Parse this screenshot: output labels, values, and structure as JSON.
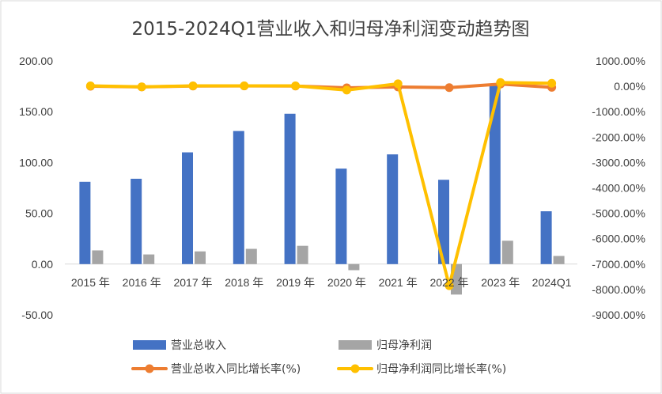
{
  "chart_data": {
    "type": "bar",
    "title": "2015-2024Q1营业收入和归母净利润变动趋势图",
    "categories": [
      "2015 年",
      "2016 年",
      "2017 年",
      "2018 年",
      "2019 年",
      "2020 年",
      "2021 年",
      "2022 年",
      "2023 年",
      "2024Q1"
    ],
    "y_left_ticks": [
      "200.00",
      "150.00",
      "100.00",
      "50.00",
      "0.00",
      "-50.00"
    ],
    "y_right_ticks": [
      "1000.00%",
      "0.00%",
      "-1000.00%",
      "-2000.00%",
      "-3000.00%",
      "-4000.00%",
      "-5000.00%",
      "-6000.00%",
      "-7000.00%",
      "-8000.00%",
      "-9000.00%"
    ],
    "ylim_left": [
      -50,
      200
    ],
    "ylim_right": [
      -9000,
      1000
    ],
    "grid": false,
    "legend_position": "bottom",
    "series": [
      {
        "name": "营业总收入",
        "type": "bar",
        "axis": "left",
        "color": "#4472C4",
        "values": [
          81,
          84,
          110,
          131,
          148,
          94,
          108,
          83,
          177,
          52
        ]
      },
      {
        "name": "归母净利润",
        "type": "bar",
        "axis": "left",
        "color": "#A5A5A5",
        "values": [
          13.5,
          9.5,
          12.5,
          15,
          18,
          -6,
          0,
          -30,
          23,
          8
        ]
      },
      {
        "name": "营业总收入同比增长率(%)",
        "type": "line",
        "axis": "right",
        "color": "#ED7D31",
        "values": [
          5,
          -25,
          10,
          15,
          10,
          -60,
          -25,
          -50,
          90,
          -40
        ]
      },
      {
        "name": "归母净利润同比增长率(%)",
        "type": "line",
        "axis": "right",
        "color": "#FFC000",
        "values": [
          20,
          -20,
          20,
          20,
          20,
          -150,
          100,
          -7850,
          150,
          120
        ]
      }
    ]
  }
}
